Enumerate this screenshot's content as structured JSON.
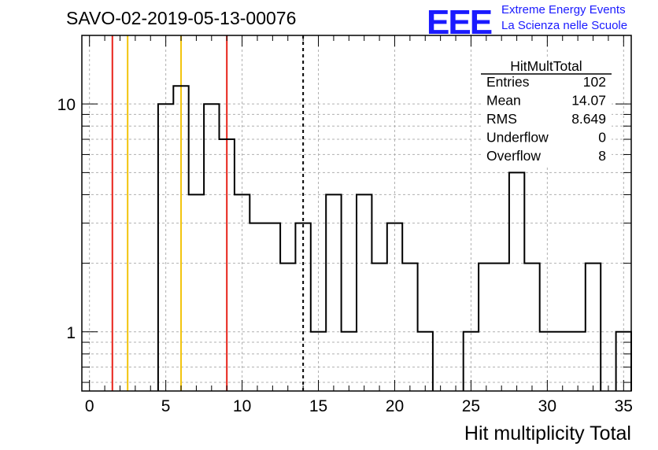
{
  "header": {
    "title": "SAVO-02-2019-05-13-00076",
    "logo_text": "EEE",
    "logo_line1": "Extreme Energy Events",
    "logo_line2": "La Scienza nelle Scuole"
  },
  "stats": {
    "name": "HitMultTotal",
    "rows": [
      {
        "label": "Entries",
        "value": "102"
      },
      {
        "label": "Mean",
        "value": "14.07"
      },
      {
        "label": "RMS",
        "value": "8.649"
      },
      {
        "label": "Underflow",
        "value": "0"
      },
      {
        "label": "Overflow",
        "value": "8"
      }
    ]
  },
  "colors": {
    "histogram": "#000000",
    "red_line": "#e8231a",
    "yellow_line": "#f2c40c",
    "dashed_line": "#000000",
    "grid": "#b0b0b0"
  },
  "chart_data": {
    "type": "histogram",
    "xlabel": "Hit multiplicity Total",
    "ylabel": "",
    "xlim": [
      -0.5,
      35.5
    ],
    "ylim": [
      0.55,
      20
    ],
    "log_y": true,
    "grid": true,
    "x_ticks": [
      0,
      5,
      10,
      15,
      20,
      25,
      30,
      35
    ],
    "y_ticks": [
      1,
      10
    ],
    "bins": [
      {
        "low": 4.5,
        "high": 5.5,
        "count": 10
      },
      {
        "low": 5.5,
        "high": 6.5,
        "count": 12
      },
      {
        "low": 6.5,
        "high": 7.5,
        "count": 4
      },
      {
        "low": 7.5,
        "high": 8.5,
        "count": 10
      },
      {
        "low": 8.5,
        "high": 9.5,
        "count": 7
      },
      {
        "low": 9.5,
        "high": 10.5,
        "count": 4
      },
      {
        "low": 10.5,
        "high": 11.5,
        "count": 3
      },
      {
        "low": 11.5,
        "high": 12.5,
        "count": 3
      },
      {
        "low": 12.5,
        "high": 13.5,
        "count": 2
      },
      {
        "low": 13.5,
        "high": 14.5,
        "count": 3
      },
      {
        "low": 14.5,
        "high": 15.5,
        "count": 1
      },
      {
        "low": 15.5,
        "high": 16.5,
        "count": 4
      },
      {
        "low": 16.5,
        "high": 17.5,
        "count": 1
      },
      {
        "low": 17.5,
        "high": 18.5,
        "count": 4
      },
      {
        "low": 18.5,
        "high": 19.5,
        "count": 2
      },
      {
        "low": 19.5,
        "high": 20.5,
        "count": 3
      },
      {
        "low": 20.5,
        "high": 21.5,
        "count": 2
      },
      {
        "low": 21.5,
        "high": 22.5,
        "count": 1
      },
      {
        "low": 22.5,
        "high": 23.5,
        "count": 0
      },
      {
        "low": 23.5,
        "high": 24.5,
        "count": 0
      },
      {
        "low": 24.5,
        "high": 25.5,
        "count": 1
      },
      {
        "low": 25.5,
        "high": 26.5,
        "count": 2
      },
      {
        "low": 26.5,
        "high": 27.5,
        "count": 2
      },
      {
        "low": 27.5,
        "high": 28.5,
        "count": 5
      },
      {
        "low": 28.5,
        "high": 29.5,
        "count": 2
      },
      {
        "low": 29.5,
        "high": 30.5,
        "count": 1
      },
      {
        "low": 30.5,
        "high": 31.5,
        "count": 1
      },
      {
        "low": 31.5,
        "high": 32.5,
        "count": 1
      },
      {
        "low": 32.5,
        "high": 33.5,
        "count": 2
      },
      {
        "low": 33.5,
        "high": 34.5,
        "count": 0
      },
      {
        "low": 34.5,
        "high": 35.5,
        "count": 1
      }
    ],
    "vertical_lines": [
      {
        "x": 1.5,
        "color": "red"
      },
      {
        "x": 2.5,
        "color": "yellow"
      },
      {
        "x": 6.0,
        "color": "yellow"
      },
      {
        "x": 9.0,
        "color": "red"
      },
      {
        "x": 14.0,
        "color": "black-dashed"
      }
    ]
  }
}
